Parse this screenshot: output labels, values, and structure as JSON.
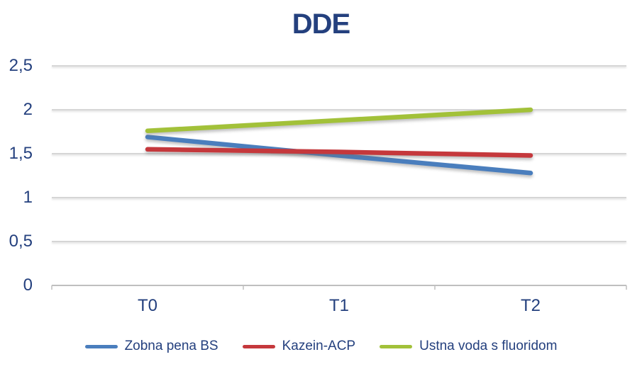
{
  "chart_data": {
    "type": "line",
    "title": "DDE",
    "categories": [
      "T0",
      "T1",
      "T2"
    ],
    "series": [
      {
        "name": "Zobna pena BS",
        "color": "#4A7EBD",
        "values": [
          1.69,
          1.48,
          1.28
        ]
      },
      {
        "name": "Kazein-ACP",
        "color": "#C5383C",
        "values": [
          1.55,
          1.52,
          1.48
        ]
      },
      {
        "name": "Ustna voda s fluoridom",
        "color": "#A2C139",
        "values": [
          1.76,
          1.88,
          2.0
        ]
      }
    ],
    "xlabel": "",
    "ylabel": "",
    "ylim": [
      0,
      2.5
    ],
    "ytick_step": 0.5,
    "ytick_labels": [
      "0",
      "0,5",
      "1",
      "1,5",
      "2",
      "2,5"
    ],
    "grid": true,
    "legend_position": "bottom",
    "text_color": "#24407E",
    "gridline_color": "#C9C9C9",
    "axis_color": "#BFBFBF"
  }
}
